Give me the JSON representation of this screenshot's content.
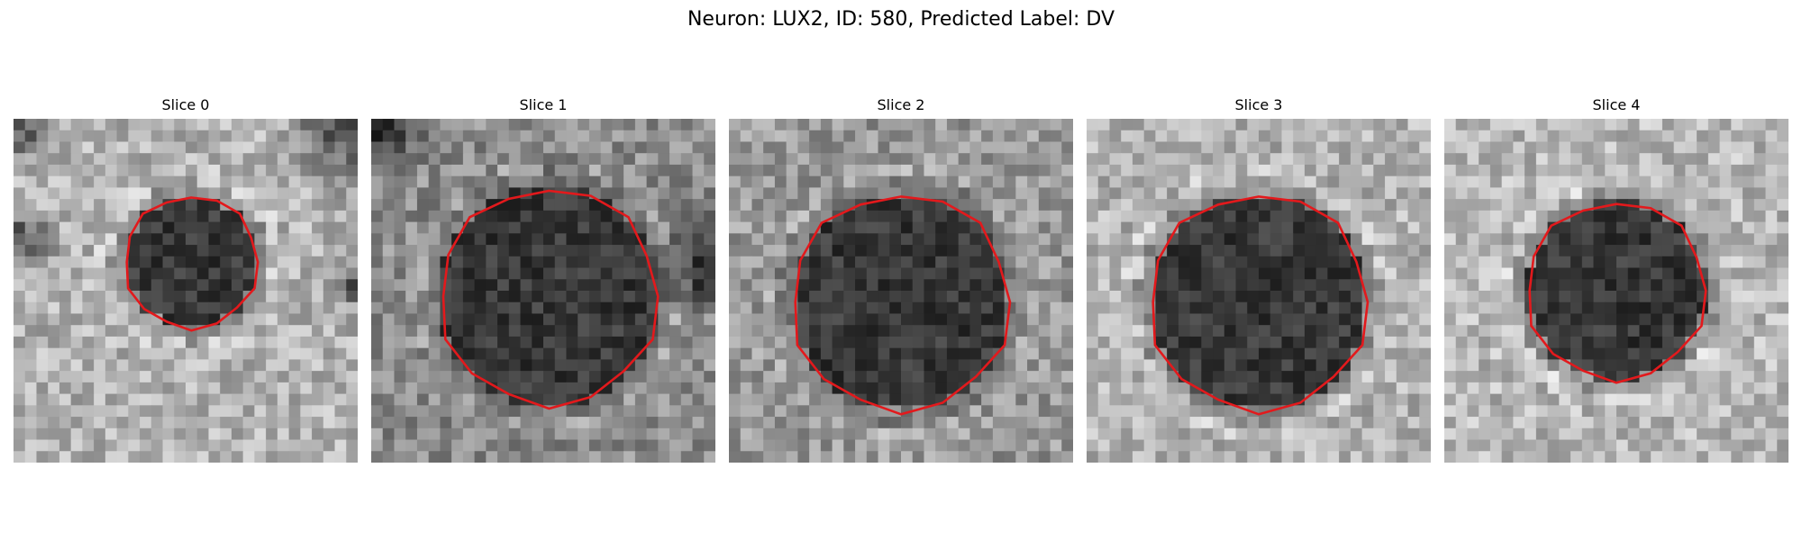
{
  "figure": {
    "title": "Neuron: LUX2, ID: 580, Predicted Label: DV",
    "contour_color": "#e3191c",
    "colormap": "grayscale",
    "panels": [
      {
        "title": "Slice 0",
        "contour_scale": 0.55,
        "background": "bright-with-dark-corners",
        "dark_fraction": 0.35
      },
      {
        "title": "Slice 1",
        "contour_scale": 0.99,
        "background": "mid-gray",
        "dark_fraction": 0.85
      },
      {
        "title": "Slice 2",
        "contour_scale": 1.0,
        "background": "mid-gray",
        "dark_fraction": 0.75
      },
      {
        "title": "Slice 3",
        "contour_scale": 1.0,
        "background": "light-gray",
        "dark_fraction": 0.65
      },
      {
        "title": "Slice 4",
        "contour_scale": 0.8,
        "background": "light-gray",
        "dark_fraction": 0.65
      }
    ]
  }
}
